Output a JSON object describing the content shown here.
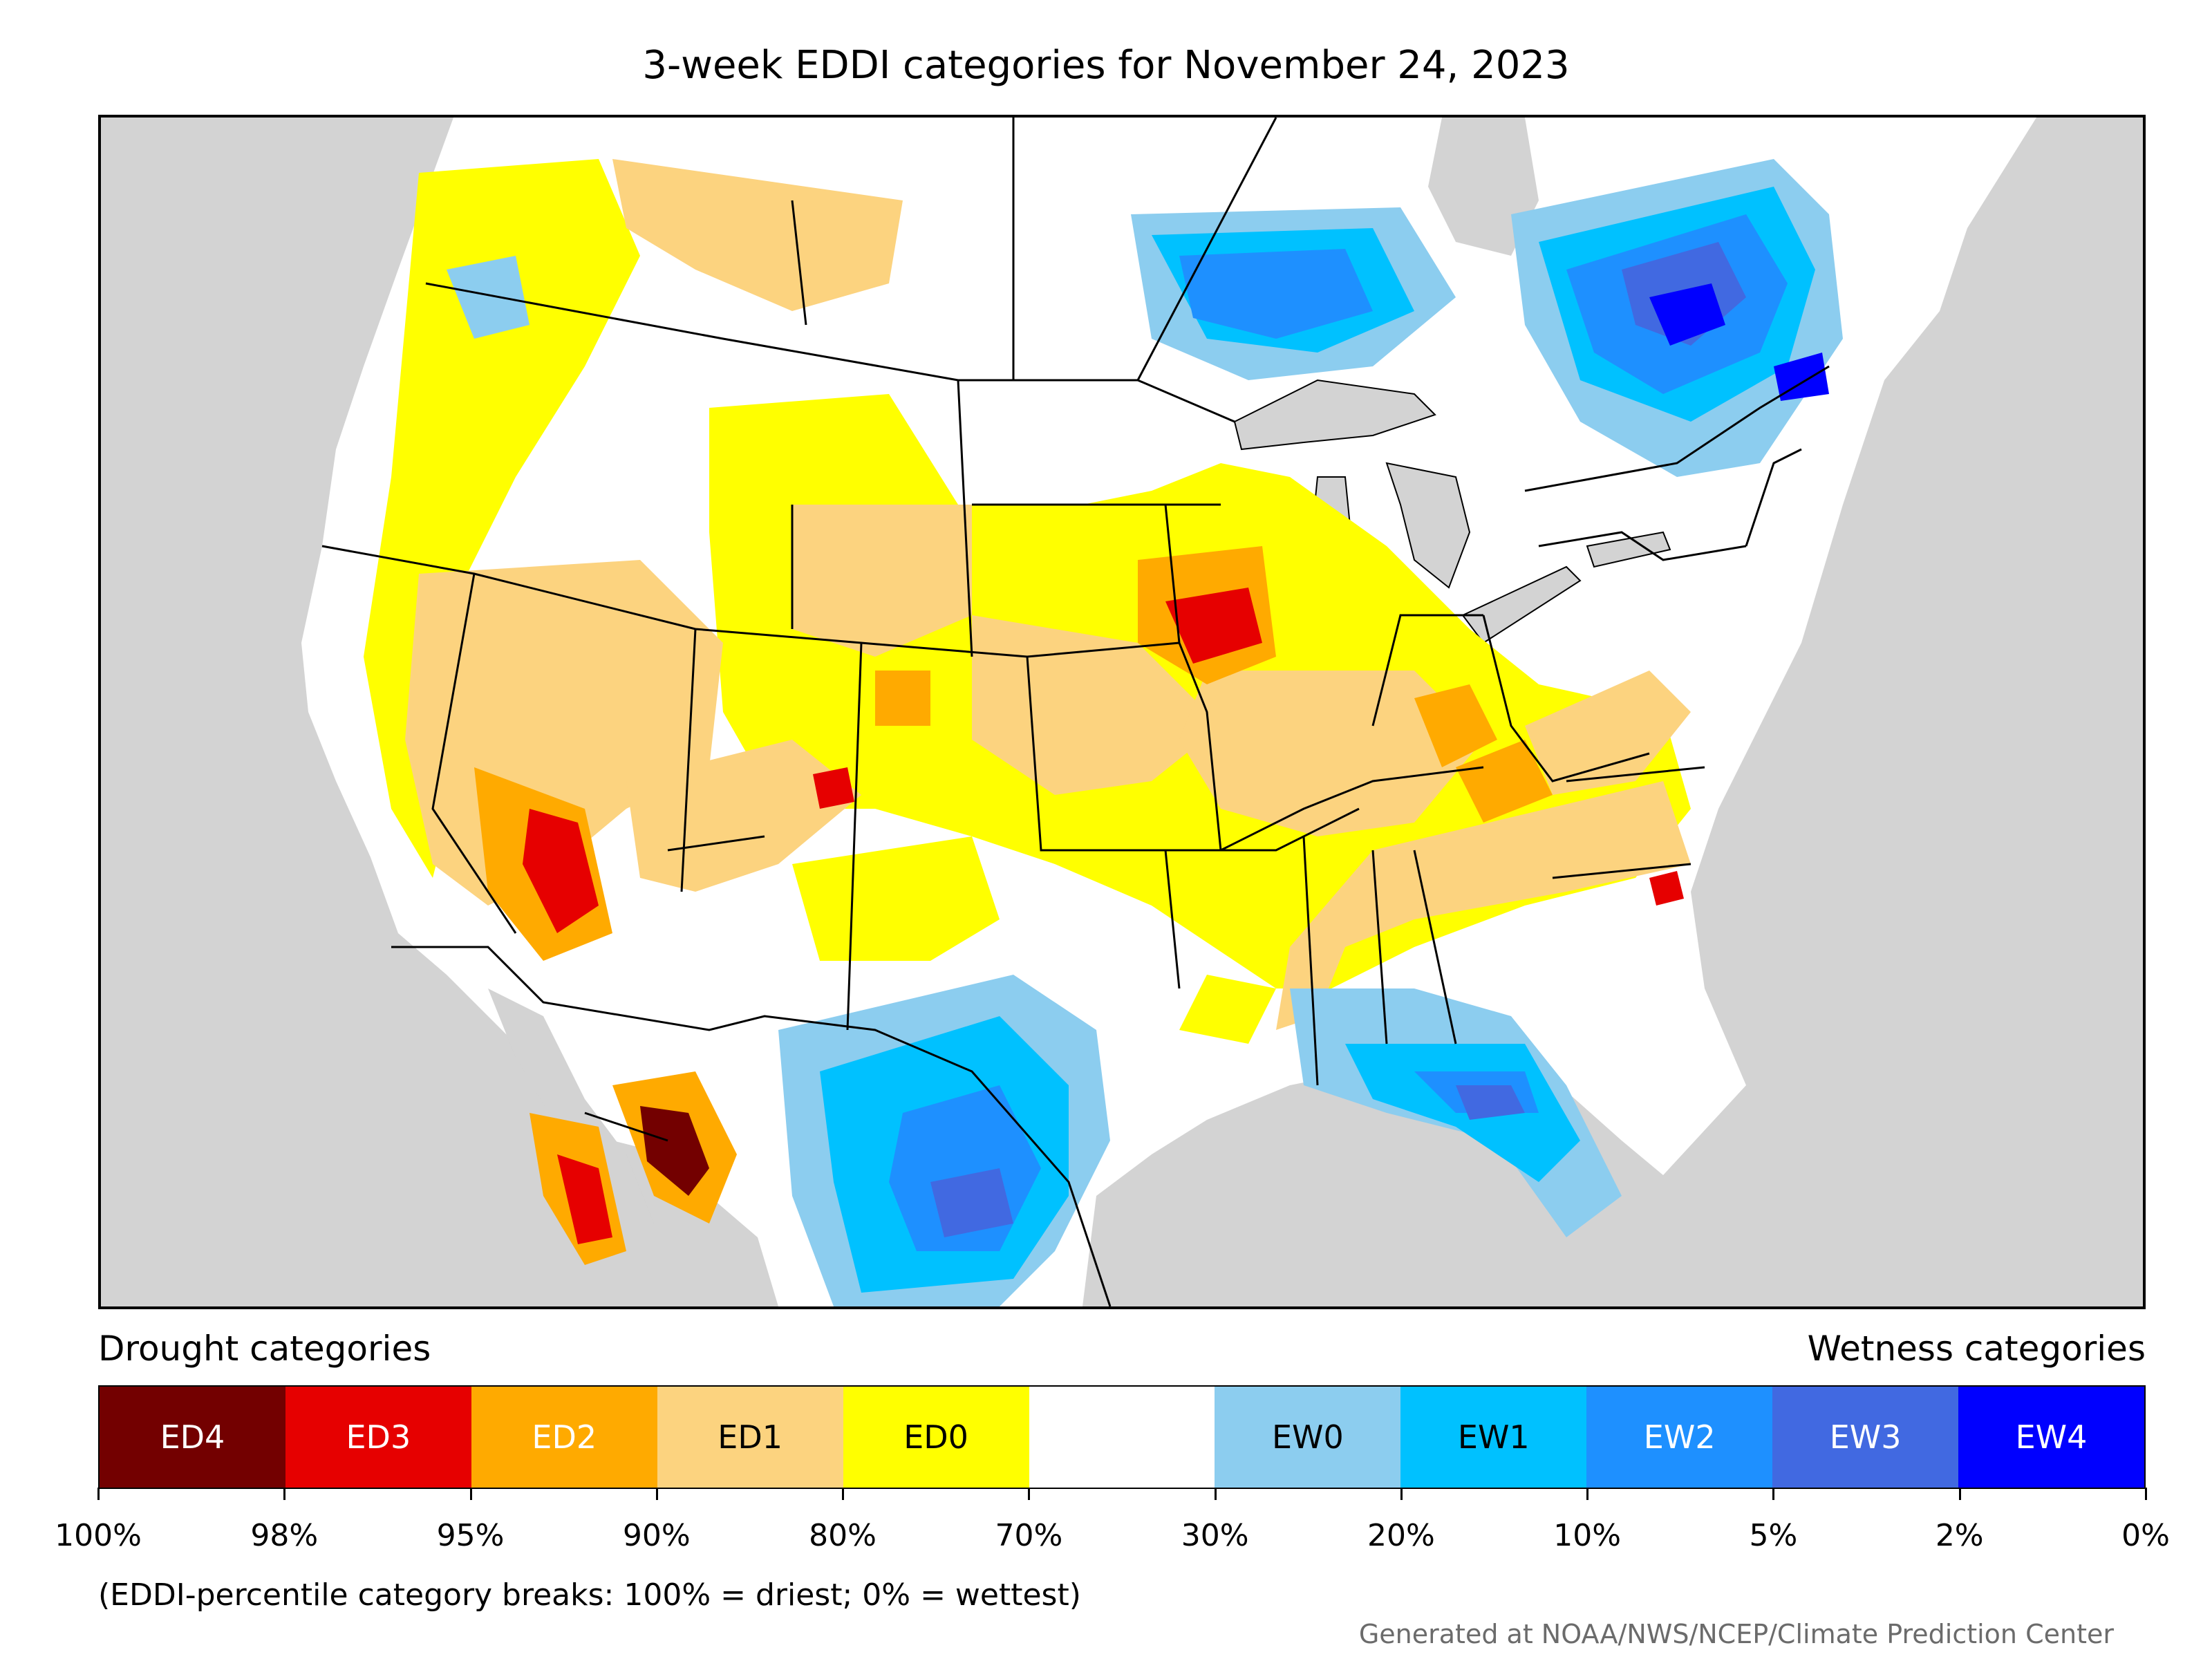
{
  "title": "3-week EDDI categories for November 24, 2023",
  "legend": {
    "drought_heading": "Drought categories",
    "wetness_heading": "Wetness categories",
    "categories": [
      {
        "label": "ED4",
        "color": "#730000",
        "text_color": "#ffffff"
      },
      {
        "label": "ED3",
        "color": "#e60000",
        "text_color": "#ffffff"
      },
      {
        "label": "ED2",
        "color": "#ffaa00",
        "text_color": "#ffffff"
      },
      {
        "label": "ED1",
        "color": "#fcd37f",
        "text_color": "#000000"
      },
      {
        "label": "ED0",
        "color": "#ffff00",
        "text_color": "#000000"
      },
      {
        "label": "",
        "color": "#ffffff",
        "text_color": "#000000"
      },
      {
        "label": "EW0",
        "color": "#8ccdef",
        "text_color": "#000000"
      },
      {
        "label": "EW1",
        "color": "#00c1ff",
        "text_color": "#000000"
      },
      {
        "label": "EW2",
        "color": "#1e90ff",
        "text_color": "#ffffff"
      },
      {
        "label": "EW3",
        "color": "#4169e1",
        "text_color": "#ffffff"
      },
      {
        "label": "EW4",
        "color": "#0000ff",
        "text_color": "#ffffff"
      }
    ],
    "breaks": [
      "100%",
      "98%",
      "95%",
      "90%",
      "80%",
      "70%",
      "30%",
      "20%",
      "10%",
      "5%",
      "2%",
      "0%"
    ],
    "note": "(EDDI-percentile category breaks: 100% = driest; 0% = wettest)"
  },
  "credit": "Generated at NOAA/NWS/NCEP/Climate Prediction Center",
  "map": {
    "background_color": "#d3d3d3",
    "land_color": "#ffffff",
    "boundary_color": "#000000"
  }
}
